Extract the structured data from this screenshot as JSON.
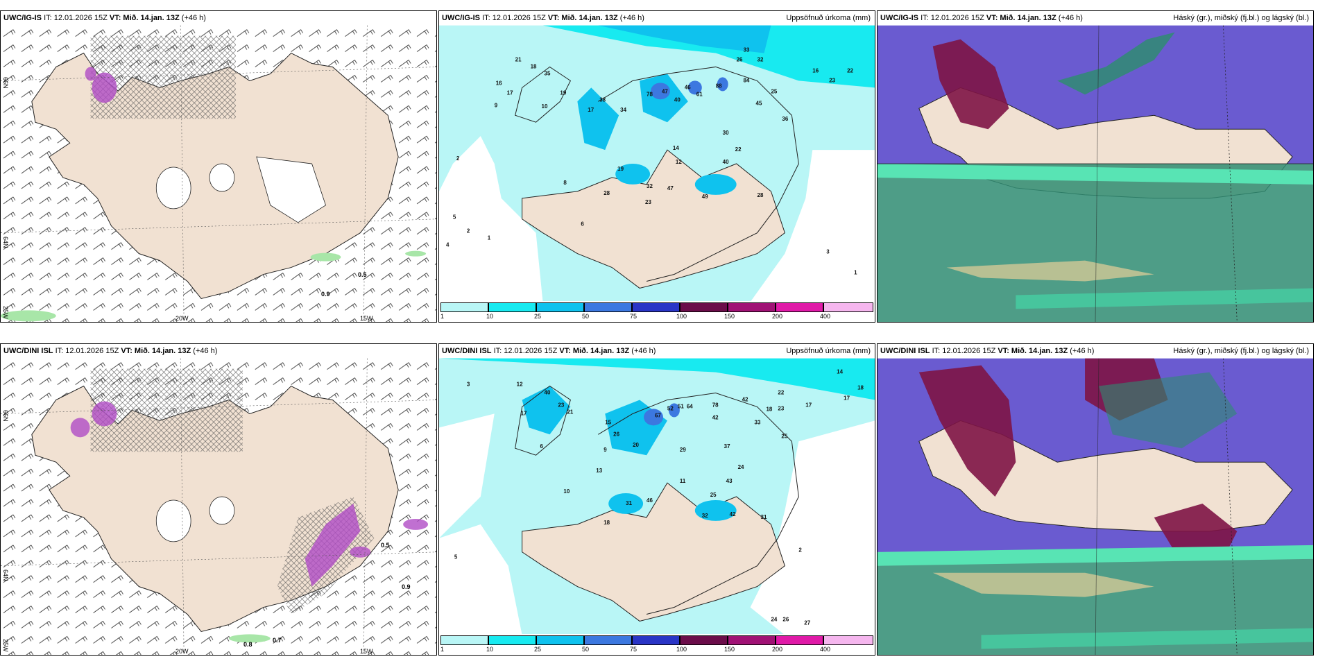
{
  "colors": {
    "land": "#f1e1d2",
    "sea": "#ffffff",
    "cyan_light": "#b9f6f6",
    "cyan": "#18eaf0",
    "cyan_mid": "#0fc2ee",
    "blue": "#3c78e0",
    "dark_blue": "#2a35c6",
    "violet_blue": "#6a5bd0",
    "maroon": "#7e1445",
    "green_teal": "#2f8c72",
    "purple": "#b04cc6"
  },
  "panels": [
    {
      "model": "UWC/IG-IS",
      "it_label": "IT: 12.01.2026 15Z",
      "vt_label": "VT: Mið. 14.jan. 13Z",
      "lead": "(+46 h)",
      "right_label": "",
      "map_labels": [
        {
          "text": "66N"
        },
        {
          "text": "64N"
        },
        {
          "text": "25W"
        },
        {
          "text": "20W"
        },
        {
          "text": "15W"
        },
        {
          "text": "0.5"
        },
        {
          "text": "0.9"
        }
      ]
    },
    {
      "model": "UWC/IG-IS",
      "it_label": "IT: 12.01.2026 15Z",
      "vt_label": "VT: Mið. 14.jan. 13Z",
      "lead": "(+46 h)",
      "right_label": "Uppsöfnuð úrkoma (mm)",
      "values": [
        "21",
        "18",
        "35",
        "16",
        "17",
        "19",
        "9",
        "10",
        "38",
        "17",
        "34",
        "78",
        "47",
        "40",
        "46",
        "61",
        "88",
        "33",
        "32",
        "26",
        "84",
        "45",
        "16",
        "23",
        "22",
        "25",
        "36",
        "30",
        "14",
        "12",
        "19",
        "32",
        "47",
        "28",
        "23",
        "40",
        "22",
        "28",
        "49",
        "8",
        "6",
        "2",
        "1",
        "5",
        "2",
        "4",
        "3",
        "1"
      ]
    },
    {
      "model": "UWC/IG-IS",
      "it_label": "IT: 12.01.2026 15Z",
      "vt_label": "VT: Mið. 14.jan. 13Z",
      "lead": "(+46 h)",
      "right_label": "Háský (gr.), miðský (fj.bl.) og lágský (bl.)"
    },
    {
      "model": "UWC/DINI ISL",
      "it_label": "IT: 12.01.2026 15Z",
      "vt_label": "VT: Mið. 14.jan. 13Z",
      "lead": "(+46 h)",
      "right_label": "",
      "map_labels": [
        {
          "text": "66N"
        },
        {
          "text": "64N"
        },
        {
          "text": "25W"
        },
        {
          "text": "20W"
        },
        {
          "text": "15W"
        },
        {
          "text": "0.5"
        },
        {
          "text": "0.9"
        },
        {
          "text": "0.8"
        },
        {
          "text": "0.7"
        }
      ]
    },
    {
      "model": "UWC/DINI ISL",
      "it_label": "IT: 12.01.2026 15Z",
      "vt_label": "VT: Mið. 14.jan. 13Z",
      "lead": "(+46 h)",
      "right_label": "Uppsöfnuð úrkoma (mm)",
      "values": [
        "12",
        "40",
        "23",
        "21",
        "17",
        "15",
        "26",
        "20",
        "67",
        "52",
        "51",
        "64",
        "78",
        "42",
        "42",
        "33",
        "18",
        "23",
        "17",
        "14",
        "17",
        "18",
        "22",
        "25",
        "37",
        "29",
        "11",
        "24",
        "43",
        "25",
        "32",
        "42",
        "31",
        "46",
        "18",
        "31",
        "13",
        "10",
        "9",
        "6",
        "5",
        "3",
        "2",
        "24",
        "26",
        "27"
      ]
    },
    {
      "model": "UWC/DINI ISL",
      "it_label": "IT: 12.01.2026 15Z",
      "vt_label": "VT: Mið. 14.jan. 13Z",
      "lead": "(+46 h)",
      "right_label": "Háský (gr.), miðský (fj.bl.) og lágský (bl.)"
    }
  ],
  "colorbar": {
    "ticks": [
      "1",
      "10",
      "25",
      "50",
      "75",
      "100",
      "150",
      "200",
      "400"
    ],
    "colors": [
      "#b9f6f6",
      "#18eaf0",
      "#0fc2ee",
      "#3c78e0",
      "#2a35c6",
      "#6b0d4a",
      "#a01275",
      "#e01aa8",
      "#f5b6ee"
    ]
  }
}
